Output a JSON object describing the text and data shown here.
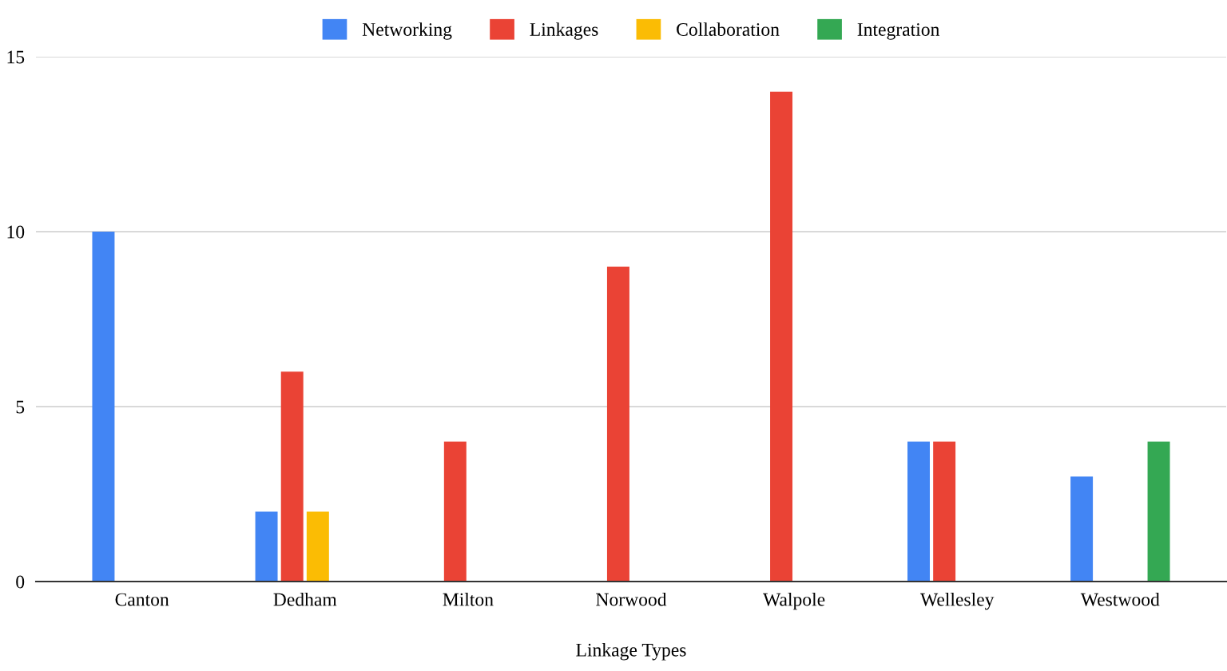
{
  "chart_data": {
    "type": "bar",
    "xlabel": "Linkage Types",
    "categories": [
      "Canton",
      "Dedham",
      "Milton",
      "Norwood",
      "Walpole",
      "Wellesley",
      "Westwood"
    ],
    "series": [
      {
        "name": "Networking",
        "color": "#4285f4",
        "values": [
          10,
          2,
          null,
          null,
          null,
          4,
          3
        ]
      },
      {
        "name": "Linkages",
        "color": "#ea4335",
        "values": [
          null,
          6,
          4,
          9,
          14,
          4,
          null
        ]
      },
      {
        "name": "Collaboration",
        "color": "#fbbc04",
        "values": [
          null,
          2,
          null,
          null,
          null,
          null,
          null
        ]
      },
      {
        "name": "Integration",
        "color": "#34a853",
        "values": [
          null,
          null,
          null,
          null,
          null,
          null,
          4
        ]
      }
    ],
    "ylim": [
      0,
      15
    ],
    "yticks": [
      0,
      5,
      10,
      15
    ],
    "grid": "y",
    "legend": "top"
  }
}
